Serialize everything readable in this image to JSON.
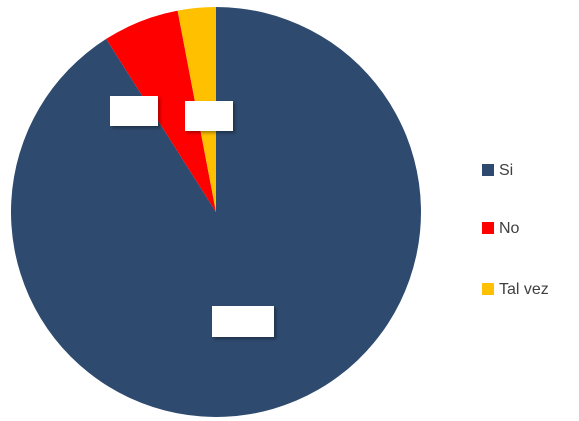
{
  "chart_data": {
    "type": "pie",
    "categories": [
      "Si",
      "No",
      "Tal vez"
    ],
    "values": [
      91,
      6,
      3
    ],
    "colors": [
      "#2e4a6e",
      "#ff0000",
      "#ffc000"
    ],
    "legend": "right"
  }
}
